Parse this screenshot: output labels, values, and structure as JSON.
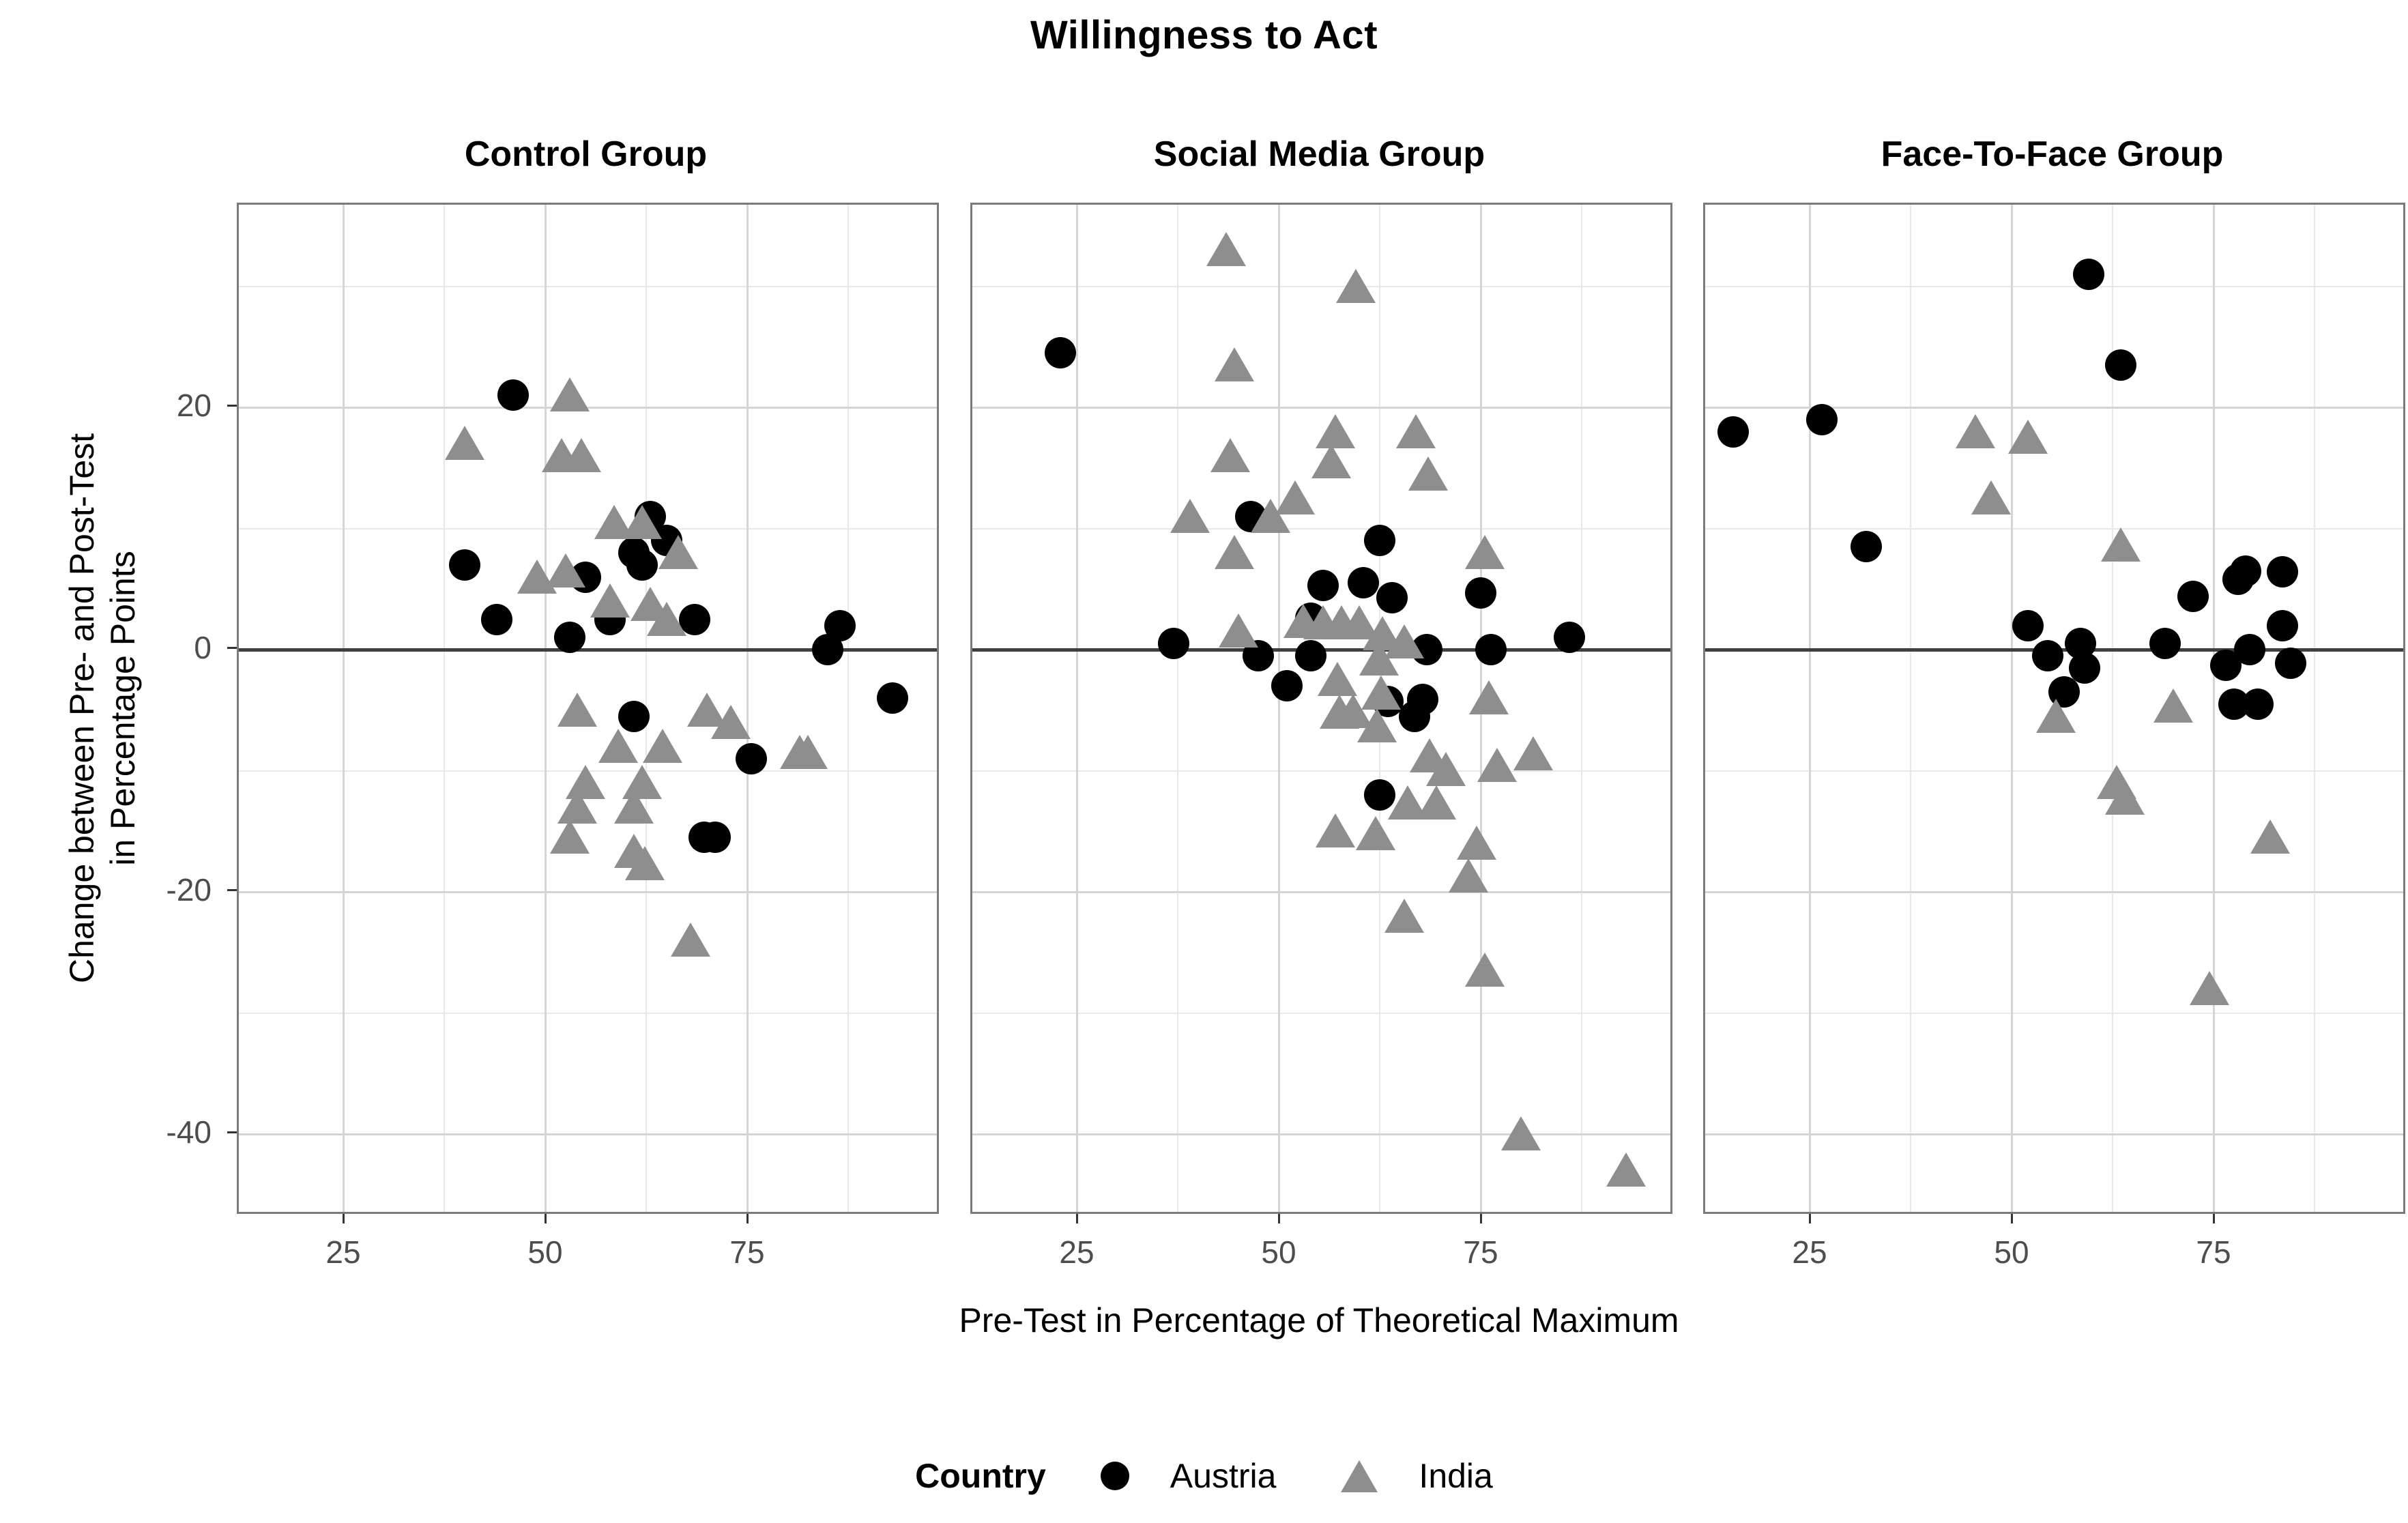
{
  "title": "Willingness to Act",
  "axis": {
    "x_title": "Pre-Test in Percentage of Theoretical Maximum",
    "y_title_line1": "Change between Pre- and Post-Test",
    "y_title_line2": "in Percentage Points",
    "x_tick_labels": [
      "25",
      "50",
      "75"
    ],
    "y_tick_labels": [
      "20",
      "0",
      "-20",
      "-40"
    ]
  },
  "legend": {
    "title": "Country",
    "items": [
      {
        "label": "Austria",
        "marker": "circle"
      },
      {
        "label": "India",
        "marker": "triangle"
      }
    ]
  },
  "colors": {
    "austria": "#000000",
    "india": "#8e8e8e",
    "grid_major": "#d5d5d5",
    "grid_minor": "#e9e9e9",
    "panel_border": "#7b7b7b",
    "zero_line": "#3f3f3f",
    "tick_text": "#4d4d4d"
  },
  "chart_data": {
    "type": "scatter",
    "title": "Willingness to Act",
    "xlabel": "Pre-Test in Percentage of Theoretical Maximum",
    "ylabel": "Change between Pre- and Post-Test in Percentage Points",
    "x_ticks": [
      25,
      50,
      75
    ],
    "y_ticks": [
      20,
      0,
      -20,
      -40
    ],
    "x_minor_ticks": [
      37.5,
      62.5,
      87.5
    ],
    "y_minor_ticks": [
      30,
      10,
      -10,
      -30
    ],
    "x_range": [
      12,
      98.5
    ],
    "y_range": [
      -46.4,
      36.7
    ],
    "zero_line_y": 0,
    "grid": true,
    "legend_position": "bottom",
    "facets": [
      {
        "label": "Control Group",
        "series": [
          {
            "name": "Austria",
            "points": [
              [
                46,
                21
              ],
              [
                40,
                7
              ],
              [
                44,
                2.5
              ],
              [
                63,
                11
              ],
              [
                65,
                9
              ],
              [
                61,
                8
              ],
              [
                62,
                7
              ],
              [
                55,
                6
              ],
              [
                58,
                2.5
              ],
              [
                68.5,
                2.5
              ],
              [
                53,
                1
              ],
              [
                86.5,
                2
              ],
              [
                85,
                0
              ],
              [
                61,
                -5.5
              ],
              [
                75.5,
                -9
              ],
              [
                93,
                -4
              ],
              [
                69.7,
                -15.5
              ],
              [
                71,
                -15.5
              ]
            ]
          },
          {
            "name": "India",
            "points": [
              [
                53,
                21
              ],
              [
                40,
                17
              ],
              [
                52,
                16
              ],
              [
                54.5,
                16
              ],
              [
                49,
                6
              ],
              [
                52.5,
                6.5
              ],
              [
                58.5,
                10.5
              ],
              [
                62,
                10.5
              ],
              [
                66.5,
                8
              ],
              [
                58,
                4
              ],
              [
                63,
                3.7
              ],
              [
                65,
                2.5
              ],
              [
                54,
                -5
              ],
              [
                59,
                -8
              ],
              [
                64.5,
                -8
              ],
              [
                70,
                -5
              ],
              [
                73,
                -6
              ],
              [
                81.5,
                -8.5
              ],
              [
                82.5,
                -8.5
              ],
              [
                55,
                -11
              ],
              [
                62,
                -11
              ],
              [
                54,
                -13
              ],
              [
                61,
                -13
              ],
              [
                53,
                -15.5
              ],
              [
                61,
                -16.7
              ],
              [
                62.3,
                -17.7
              ],
              [
                68,
                -24
              ]
            ]
          }
        ]
      },
      {
        "label": "Social Media Group",
        "series": [
          {
            "name": "Austria",
            "points": [
              [
                23,
                24.5
              ],
              [
                46.5,
                11
              ],
              [
                62.5,
                9
              ],
              [
                60.5,
                5.5
              ],
              [
                64,
                4.3
              ],
              [
                55.5,
                5.3
              ],
              [
                75,
                4.7
              ],
              [
                54,
                2.6
              ],
              [
                37,
                0.5
              ],
              [
                47.5,
                -0.5
              ],
              [
                54,
                -0.5
              ],
              [
                68.3,
                0
              ],
              [
                76.3,
                0
              ],
              [
                86,
                1
              ],
              [
                51,
                -3
              ],
              [
                63.5,
                -4.3
              ],
              [
                67.8,
                -4.1
              ],
              [
                66.8,
                -5.5
              ],
              [
                62.5,
                -12
              ]
            ]
          },
          {
            "name": "India",
            "points": [
              [
                43.5,
                33
              ],
              [
                59.5,
                30
              ],
              [
                44.5,
                23.5
              ],
              [
                57,
                18
              ],
              [
                67,
                18
              ],
              [
                44,
                16
              ],
              [
                56.5,
                15.5
              ],
              [
                68.5,
                14.5
              ],
              [
                52,
                12.5
              ],
              [
                39,
                11
              ],
              [
                49,
                11
              ],
              [
                44.5,
                8
              ],
              [
                75.5,
                8
              ],
              [
                45,
                1.5
              ],
              [
                53,
                2.3
              ],
              [
                55.5,
                2.2
              ],
              [
                57.8,
                2.2
              ],
              [
                60,
                2.2
              ],
              [
                62.8,
                1.3
              ],
              [
                65.5,
                0.6
              ],
              [
                57.3,
                -2.5
              ],
              [
                62.4,
                -0.8
              ],
              [
                57.5,
                -5.2
              ],
              [
                59.2,
                -5.1
              ],
              [
                62.7,
                -3.6
              ],
              [
                62.2,
                -6.3
              ],
              [
                76,
                -4
              ],
              [
                68.7,
                -8.8
              ],
              [
                70.7,
                -9.9
              ],
              [
                77,
                -9.6
              ],
              [
                81.5,
                -8.6
              ],
              [
                66,
                -12.7
              ],
              [
                69.5,
                -12.7
              ],
              [
                57,
                -15
              ],
              [
                62,
                -15.2
              ],
              [
                74.5,
                -16
              ],
              [
                73.5,
                -18.7
              ],
              [
                65.5,
                -22
              ],
              [
                75.5,
                -26.5
              ],
              [
                80,
                -40
              ],
              [
                93,
                -43
              ]
            ]
          }
        ]
      },
      {
        "label": "Face-To-Face Group",
        "series": [
          {
            "name": "Austria",
            "points": [
              [
                15.5,
                18
              ],
              [
                26.5,
                19
              ],
              [
                32,
                8.5
              ],
              [
                59.5,
                31
              ],
              [
                63.5,
                23.5
              ],
              [
                72.5,
                4.4
              ],
              [
                78,
                5.8
              ],
              [
                79,
                6.5
              ],
              [
                83.5,
                6.4
              ],
              [
                83.5,
                2
              ],
              [
                69,
                0.5
              ],
              [
                58.5,
                0.5
              ],
              [
                52,
                2
              ],
              [
                54.5,
                -0.5
              ],
              [
                56.5,
                -3.5
              ],
              [
                59,
                -1.5
              ],
              [
                79.5,
                0
              ],
              [
                76.5,
                -1.3
              ],
              [
                84.5,
                -1.1
              ],
              [
                77.5,
                -4.5
              ],
              [
                80.5,
                -4.5
              ]
            ]
          },
          {
            "name": "India",
            "points": [
              [
                45.5,
                18
              ],
              [
                52,
                17.5
              ],
              [
                47.5,
                12.5
              ],
              [
                63.5,
                8.6
              ],
              [
                55.5,
                -5.5
              ],
              [
                70,
                -4.7
              ],
              [
                63,
                -11
              ],
              [
                64,
                -12.3
              ],
              [
                82,
                -15.5
              ],
              [
                74.5,
                -28
              ]
            ]
          }
        ]
      }
    ]
  }
}
